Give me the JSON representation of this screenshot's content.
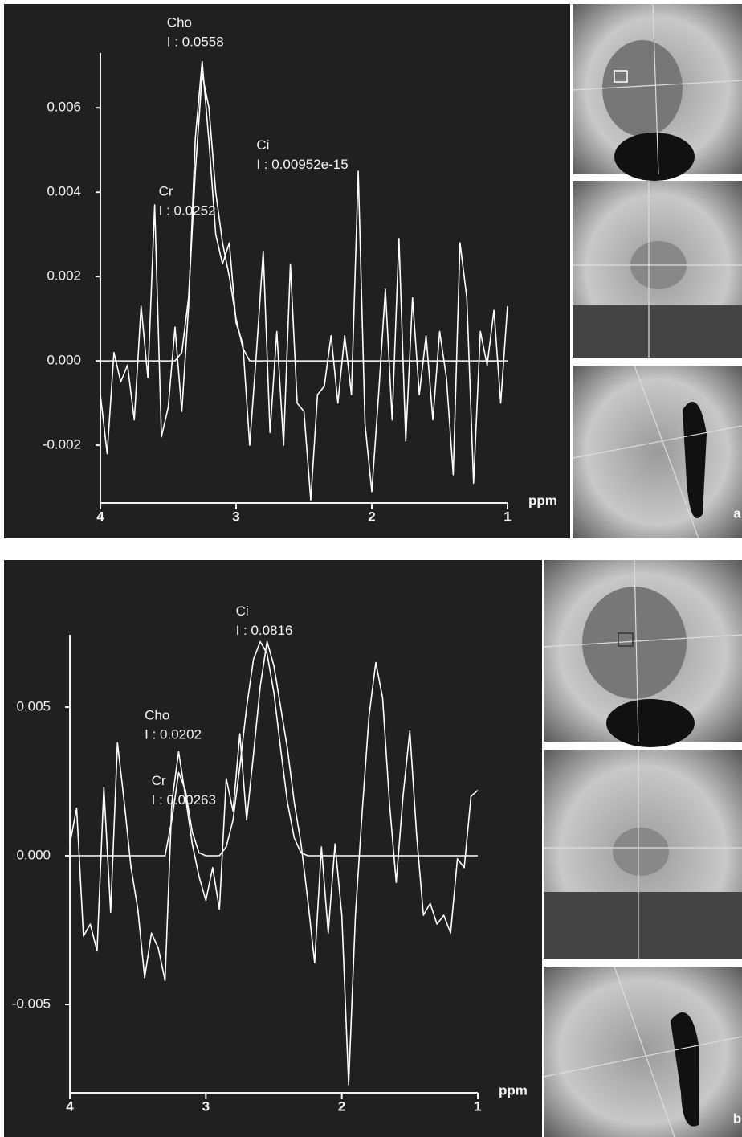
{
  "chart_data": [
    {
      "type": "line",
      "panel_label": "a",
      "xlabel": "ppm",
      "x": [
        4.0,
        3.95,
        3.9,
        3.85,
        3.8,
        3.75,
        3.7,
        3.65,
        3.6,
        3.55,
        3.5,
        3.45,
        3.4,
        3.35,
        3.3,
        3.25,
        3.2,
        3.15,
        3.1,
        3.05,
        3.0,
        2.95,
        2.9,
        2.85,
        2.8,
        2.75,
        2.7,
        2.65,
        2.6,
        2.55,
        2.5,
        2.45,
        2.4,
        2.35,
        2.3,
        2.25,
        2.2,
        2.15,
        2.1,
        2.05,
        2.0,
        1.95,
        1.9,
        1.85,
        1.8,
        1.75,
        1.7,
        1.65,
        1.6,
        1.55,
        1.5,
        1.45,
        1.4,
        1.35,
        1.3,
        1.25,
        1.2,
        1.15,
        1.1,
        1.05,
        1.0
      ],
      "series": [
        {
          "color": "#ffffff",
          "values": [
            -0.0008,
            -0.0022,
            0.0002,
            -0.0005,
            -0.0001,
            -0.0014,
            0.0013,
            -0.0004,
            0.0037,
            -0.0018,
            -0.0011,
            0.0008,
            -0.0012,
            0.0013,
            0.0053,
            0.0071,
            0.0052,
            0.003,
            0.0023,
            0.0028,
            0.0009,
            0.0004,
            -0.002,
            0.0002,
            0.0026,
            -0.0017,
            0.0007,
            -0.002,
            0.0023,
            -0.001,
            -0.0012,
            -0.0033,
            -0.0008,
            -0.0006,
            0.0006,
            -0.001,
            0.0006,
            -0.0008,
            0.0045,
            -0.0015,
            -0.0031,
            -0.0008,
            0.0017,
            -0.0014,
            0.0029,
            -0.0019,
            0.0015,
            -0.0008,
            0.0006,
            -0.0014,
            0.0007,
            -0.0004,
            -0.0027,
            0.0028,
            0.0015,
            -0.0029,
            0.0007,
            -0.0001,
            0.0012,
            -0.001,
            0.0013
          ]
        },
        {
          "color": "#ffffff",
          "values": [
            0,
            0,
            0,
            0,
            0,
            0,
            0,
            0,
            0,
            0,
            0,
            0,
            0.0002,
            0.0015,
            0.0045,
            0.0068,
            0.006,
            0.004,
            0.0028,
            0.002,
            0.001,
            0.0003,
            0,
            0,
            0,
            0,
            0,
            0,
            0,
            0,
            0,
            0,
            0,
            0,
            0,
            0,
            0,
            0,
            0,
            0,
            0,
            0,
            0,
            0,
            0,
            0,
            0,
            0,
            0,
            0,
            0,
            0,
            0,
            0,
            0,
            0,
            0,
            0,
            0,
            0,
            0
          ]
        }
      ],
      "xlim": [
        4,
        1
      ],
      "xticks": [
        4,
        3,
        2,
        1
      ],
      "ylim": [
        -0.00337,
        0.0073
      ],
      "yticks": [
        -0.002,
        {
          "value": 0,
          "label": "0.000"
        },
        0.002,
        0.004,
        0.006
      ],
      "annotations": [
        {
          "text": [
            "Cho",
            "I : 0.0558"
          ],
          "x": 3.51,
          "y": 0.008
        },
        {
          "text": [
            "Cr",
            "I : 0.0252"
          ],
          "x": 3.57,
          "y": 0.004
        },
        {
          "text": [
            "Ci",
            "I : 0.00952e-15"
          ],
          "x": 2.85,
          "y": 0.0051
        }
      ]
    },
    {
      "type": "line",
      "panel_label": "b",
      "xlabel": "ppm",
      "x": [
        4.0,
        3.95,
        3.9,
        3.85,
        3.8,
        3.75,
        3.7,
        3.65,
        3.6,
        3.55,
        3.5,
        3.45,
        3.4,
        3.35,
        3.3,
        3.25,
        3.2,
        3.15,
        3.1,
        3.05,
        3.0,
        2.95,
        2.9,
        2.85,
        2.8,
        2.75,
        2.7,
        2.65,
        2.6,
        2.55,
        2.5,
        2.45,
        2.4,
        2.35,
        2.3,
        2.25,
        2.2,
        2.15,
        2.1,
        2.05,
        2.0,
        1.95,
        1.9,
        1.85,
        1.8,
        1.75,
        1.7,
        1.65,
        1.6,
        1.55,
        1.5,
        1.45,
        1.4,
        1.35,
        1.3,
        1.25,
        1.2,
        1.15,
        1.1,
        1.05,
        1.0
      ],
      "series": [
        {
          "color": "#ffffff",
          "values": [
            0.0004,
            0.0016,
            -0.0027,
            -0.0023,
            -0.0032,
            0.0023,
            -0.0019,
            0.0038,
            0.0018,
            -0.0004,
            -0.0018,
            -0.0041,
            -0.0026,
            -0.0031,
            -0.0042,
            0.0018,
            0.0035,
            0.002,
            0.0004,
            -0.0007,
            -0.0015,
            -0.0004,
            -0.0018,
            0.0026,
            0.0015,
            0.0041,
            0.0012,
            0.0034,
            0.0057,
            0.0072,
            0.0064,
            0.005,
            0.0036,
            0.0018,
            0.0004,
            -0.0015,
            -0.0036,
            0.0003,
            -0.0026,
            0.0004,
            -0.002,
            -0.0077,
            -0.002,
            0.0015,
            0.0047,
            0.0065,
            0.0053,
            0.0018,
            -0.0009,
            0.002,
            0.0042,
            0.0007,
            -0.002,
            -0.0016,
            -0.0023,
            -0.002,
            -0.0026,
            -0.0001,
            -0.0004,
            0.002,
            0.0022
          ]
        },
        {
          "color": "#ffffff",
          "values": [
            0,
            0,
            0,
            0,
            0,
            0,
            0,
            0,
            0,
            0,
            0,
            0,
            0,
            0,
            0,
            0.0012,
            0.0028,
            0.0022,
            0.0008,
            0.0001,
            0,
            0,
            0,
            0.0003,
            0.0012,
            0.003,
            0.005,
            0.0066,
            0.0072,
            0.0068,
            0.0055,
            0.0036,
            0.0018,
            0.0006,
            0.0001,
            0,
            0,
            0,
            0,
            0,
            0,
            0,
            0,
            0,
            0,
            0,
            0,
            0,
            0,
            0,
            0,
            0,
            0,
            0,
            0,
            0,
            0,
            0,
            0,
            0,
            0
          ]
        }
      ],
      "xlim": [
        4,
        1
      ],
      "xticks": [
        4,
        3,
        2,
        1
      ],
      "ylim": [
        -0.00797,
        0.00743
      ],
      "yticks": [
        -0.005,
        {
          "value": 0,
          "label": "0.000"
        },
        0.005
      ],
      "annotations": [
        {
          "text": [
            "Ci",
            "I : 0.0816"
          ],
          "x": 2.78,
          "y": 0.0082
        },
        {
          "text": [
            "Cho",
            "I : 0.0202"
          ],
          "x": 3.45,
          "y": 0.0047
        },
        {
          "text": [
            "Cr",
            "I : 0.00263"
          ],
          "x": 3.4,
          "y": 0.0025
        }
      ]
    }
  ]
}
